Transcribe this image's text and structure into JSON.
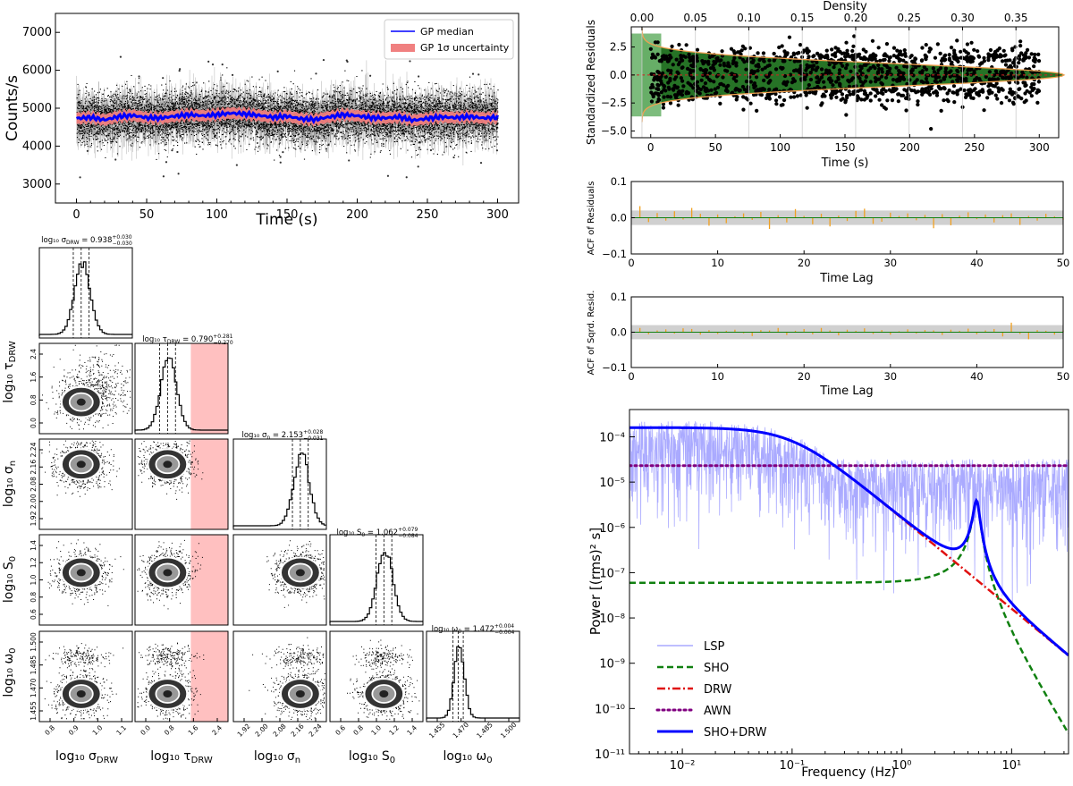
{
  "chart_data": [
    {
      "id": "lightcurve",
      "type": "line",
      "xlabel": "Time (s)",
      "ylabel": "Counts/s",
      "xlim": [
        -15,
        315
      ],
      "ylim": [
        2500,
        7500
      ],
      "xticks": [
        0,
        50,
        100,
        150,
        200,
        250,
        300
      ],
      "yticks": [
        3000,
        4000,
        5000,
        6000,
        7000
      ],
      "series": [
        {
          "name": "GP median",
          "color": "#0000ff",
          "x": [
            0,
            10,
            20,
            30,
            40,
            50,
            60,
            70,
            80,
            90,
            100,
            110,
            120,
            130,
            140,
            150,
            160,
            170,
            180,
            190,
            200,
            210,
            220,
            230,
            240,
            250,
            260,
            270,
            280,
            290,
            300
          ],
          "y": [
            4730,
            4760,
            4690,
            4780,
            4810,
            4750,
            4740,
            4790,
            4830,
            4800,
            4830,
            4870,
            4850,
            4810,
            4760,
            4790,
            4720,
            4700,
            4770,
            4830,
            4800,
            4750,
            4740,
            4770,
            4680,
            4730,
            4770,
            4750,
            4780,
            4740,
            4760
          ]
        },
        {
          "name": "GP 1σ uncertainty",
          "color": "#f08080",
          "band": 150
        }
      ],
      "data_mean": 4750,
      "data_spread": 320
    },
    {
      "id": "residuals",
      "type": "scatter",
      "xlabel": "Time (s)",
      "ylabel": "Standardized Residuals",
      "top_xlabel": "Density",
      "xlim": [
        -15,
        315
      ],
      "ylim": [
        -5.6,
        4.3
      ],
      "xticks": [
        0,
        50,
        100,
        150,
        200,
        250,
        300
      ],
      "yticks": [
        -5.0,
        -2.5,
        0.0,
        2.5
      ],
      "ytick_labels": [
        "−5.0",
        "−2.5",
        "0.0",
        "2.5"
      ],
      "top_xlim": [
        -0.01,
        0.39
      ],
      "top_xticks": [
        0.0,
        0.05,
        0.1,
        0.15,
        0.2,
        0.25,
        0.3,
        0.35
      ],
      "top_xtick_labels": [
        "0.00",
        "0.05",
        "0.10",
        "0.15",
        "0.20",
        "0.25",
        "0.30",
        "0.35"
      ],
      "density_peak": 0.395
    },
    {
      "id": "acf_resid",
      "type": "bar",
      "xlabel": "Time Lag",
      "ylabel": "ACF of Residuals",
      "xlim": [
        0,
        50
      ],
      "ylim": [
        -0.1,
        0.1
      ],
      "xticks": [
        0,
        10,
        20,
        30,
        40,
        50
      ],
      "yticks": [
        -0.1,
        0.0,
        0.1
      ],
      "ytick_labels": [
        "−0.1",
        "0.0",
        "0.1"
      ],
      "conf_band": 0.02,
      "values": [
        0.032,
        -0.012,
        0.013,
        -0.008,
        0.018,
        -0.005,
        0.027,
        0.011,
        -0.022,
        0.009,
        -0.015,
        0.004,
        0.012,
        -0.006,
        0.016,
        -0.031,
        0.007,
        -0.013,
        0.024,
        0.005,
        -0.018,
        0.011,
        -0.024,
        0.006,
        -0.009,
        0.019,
        0.025,
        -0.017,
        -0.011,
        0.014,
        0.005,
        0.012,
        -0.007,
        0.008,
        -0.029,
        0.01,
        -0.021,
        0.006,
        0.015,
        -0.004,
        0.009,
        -0.013,
        0.007,
        0.012,
        -0.02,
        0.005,
        -0.008,
        0.011,
        0.004,
        -0.006
      ]
    },
    {
      "id": "acf_sq",
      "type": "bar",
      "xlabel": "Time Lag",
      "ylabel": "ACF of Sqrd. Resid.",
      "xlim": [
        0,
        50
      ],
      "ylim": [
        -0.1,
        0.1
      ],
      "xticks": [
        0,
        10,
        20,
        30,
        40,
        50
      ],
      "yticks": [
        -0.1,
        0.0,
        0.1
      ],
      "ytick_labels": [
        "−0.1",
        "0.0",
        "0.1"
      ],
      "conf_band": 0.02,
      "values": [
        0.012,
        -0.006,
        0.005,
        0.008,
        -0.004,
        0.011,
        0.009,
        -0.007,
        0.006,
        -0.005,
        0.004,
        0.007,
        -0.003,
        -0.011,
        0.006,
        0.005,
        0.012,
        -0.008,
        0.004,
        0.009,
        -0.006,
        0.012,
        0.005,
        -0.009,
        0.007,
        0.004,
        0.011,
        -0.005,
        0.006,
        -0.007,
        0.003,
        0.008,
        -0.004,
        0.006,
        0.005,
        -0.008,
        0.007,
        0.004,
        0.01,
        -0.006,
        0.005,
        0.009,
        -0.012,
        0.027,
        -0.005,
        -0.02,
        0.006,
        0.004,
        -0.007,
        0.005
      ]
    },
    {
      "id": "psd",
      "type": "line",
      "xlabel": "Frequency (Hz)",
      "ylabel": "Power [(rms)² s]",
      "xscale": "log",
      "yscale": "log",
      "xlim": [
        0.0033,
        33
      ],
      "ylim": [
        1e-11,
        0.0004
      ],
      "xticks": [
        0.01,
        0.1,
        1,
        10
      ],
      "xtick_labels": [
        "10⁻²",
        "10⁻¹",
        "10⁰",
        "10¹"
      ],
      "yticks": [
        1e-11,
        1e-10,
        1e-09,
        1e-08,
        1e-07,
        1e-06,
        1e-05,
        0.0001
      ],
      "ytick_labels": [
        "10⁻¹¹",
        "10⁻¹⁰",
        "10⁻⁹",
        "10⁻⁸",
        "10⁻⁷",
        "10⁻⁶",
        "10⁻⁵",
        "10⁻⁴"
      ],
      "legend": [
        {
          "name": "LSP",
          "color": "#aaaaff",
          "style": "solid"
        },
        {
          "name": "SHO",
          "color": "#108010",
          "style": "dashed"
        },
        {
          "name": "DRW",
          "color": "#e01010",
          "style": "dashdot"
        },
        {
          "name": "AWN",
          "color": "#800080",
          "style": "dotted"
        },
        {
          "name": "SHO+DRW",
          "color": "#0000ff",
          "style": "solid"
        }
      ],
      "params": {
        "drw_amp": 0.00016,
        "drw_fc": 0.1,
        "awn": 2.3e-05,
        "sho_peak": 4.8,
        "sho_floor": 6e-08,
        "sho_max": 7.2e-06
      }
    }
  ],
  "corner": {
    "titles": [
      {
        "lhs": "log₁₀ σ",
        "sub": "DRW",
        "value": "= 0.938",
        "sup": "+0.030",
        "inf": "−0.030"
      },
      {
        "lhs": "log₁₀ τ",
        "sub": "DRW",
        "value": "= 0.790",
        "sup": "+0.281",
        "inf": "−0.270"
      },
      {
        "lhs": "log₁₀ σ",
        "sub": "n",
        "value": "= 2.153",
        "sup": "+0.028",
        "inf": "−0.031"
      },
      {
        "lhs": "log₁₀ S",
        "sub": "0",
        "value": "= 1.062",
        "sup": "+0.079",
        "inf": "−0.084"
      },
      {
        "lhs": "log₁₀ ω",
        "sub": "0",
        "value": "= 1.472",
        "sup": "+0.004",
        "inf": "−0.004"
      }
    ],
    "xlabels": [
      {
        "lhs": "log₁₀ σ",
        "sub": "DRW"
      },
      {
        "lhs": "log₁₀ τ",
        "sub": "DRW"
      },
      {
        "lhs": "log₁₀ σ",
        "sub": "n"
      },
      {
        "lhs": "log₁₀ S",
        "sub": "0"
      },
      {
        "lhs": "log₁₀ ω",
        "sub": "0"
      }
    ],
    "ylabels": [
      {
        "lhs": "log₁₀ τ",
        "sub": "DRW"
      },
      {
        "lhs": "log₁₀ σ",
        "sub": "n"
      },
      {
        "lhs": "log₁₀ S",
        "sub": "0"
      },
      {
        "lhs": "log₁₀ ω",
        "sub": "0"
      }
    ],
    "xticks": [
      [
        "0.8",
        "0.9",
        "1.0",
        "1.1"
      ],
      [
        "0.0",
        "0.8",
        "1.6",
        "2.4"
      ],
      [
        "1.92",
        "2.00",
        "2.08",
        "2.16",
        "2.24"
      ],
      [
        "0.6",
        "0.8",
        "1.0",
        "1.2",
        "1.4"
      ],
      [
        "1.455",
        "1.470",
        "1.485",
        "1.500"
      ]
    ],
    "yticks": [
      [
        "0.0",
        "0.8",
        "1.6",
        "2.4"
      ],
      [
        "1.92",
        "2.00",
        "2.08",
        "2.16",
        "2.24"
      ],
      [
        "0.6",
        "0.8",
        "1.0",
        "1.2",
        "1.4"
      ],
      [
        "1.455",
        "1.470",
        "1.485",
        "1.500"
      ]
    ],
    "peaks": [
      0.45,
      0.35,
      0.72,
      0.58,
      0.34
    ],
    "prior_region_color": "#ffc0c0"
  }
}
